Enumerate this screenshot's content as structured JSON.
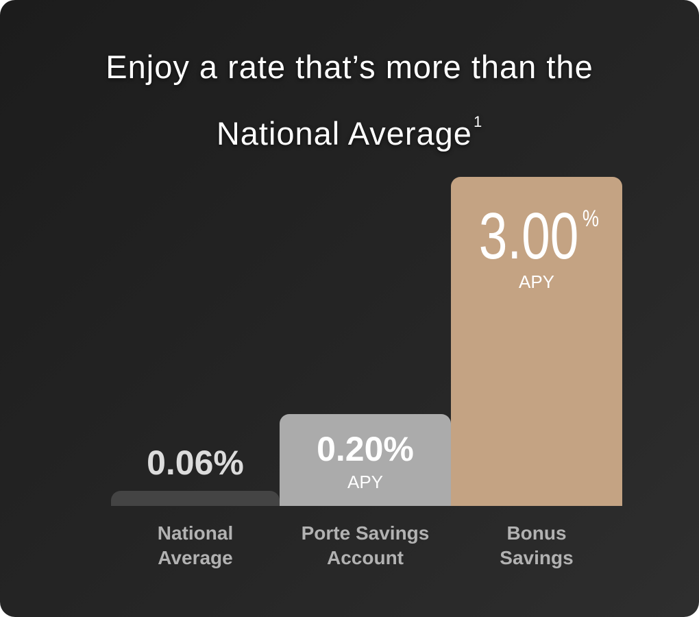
{
  "header": {
    "title": "Enjoy a rate that’s more than the National Average",
    "footnote": "1"
  },
  "bars": [
    {
      "rate": "0.06%",
      "label": [
        "National",
        "Average"
      ]
    },
    {
      "rate": "0.20%",
      "note": "APY",
      "label": [
        "Porte Savings",
        "Account"
      ]
    },
    {
      "rate": "3.00",
      "unit": "%",
      "note": "APY",
      "label": [
        "Bonus",
        "Savings"
      ]
    }
  ]
}
